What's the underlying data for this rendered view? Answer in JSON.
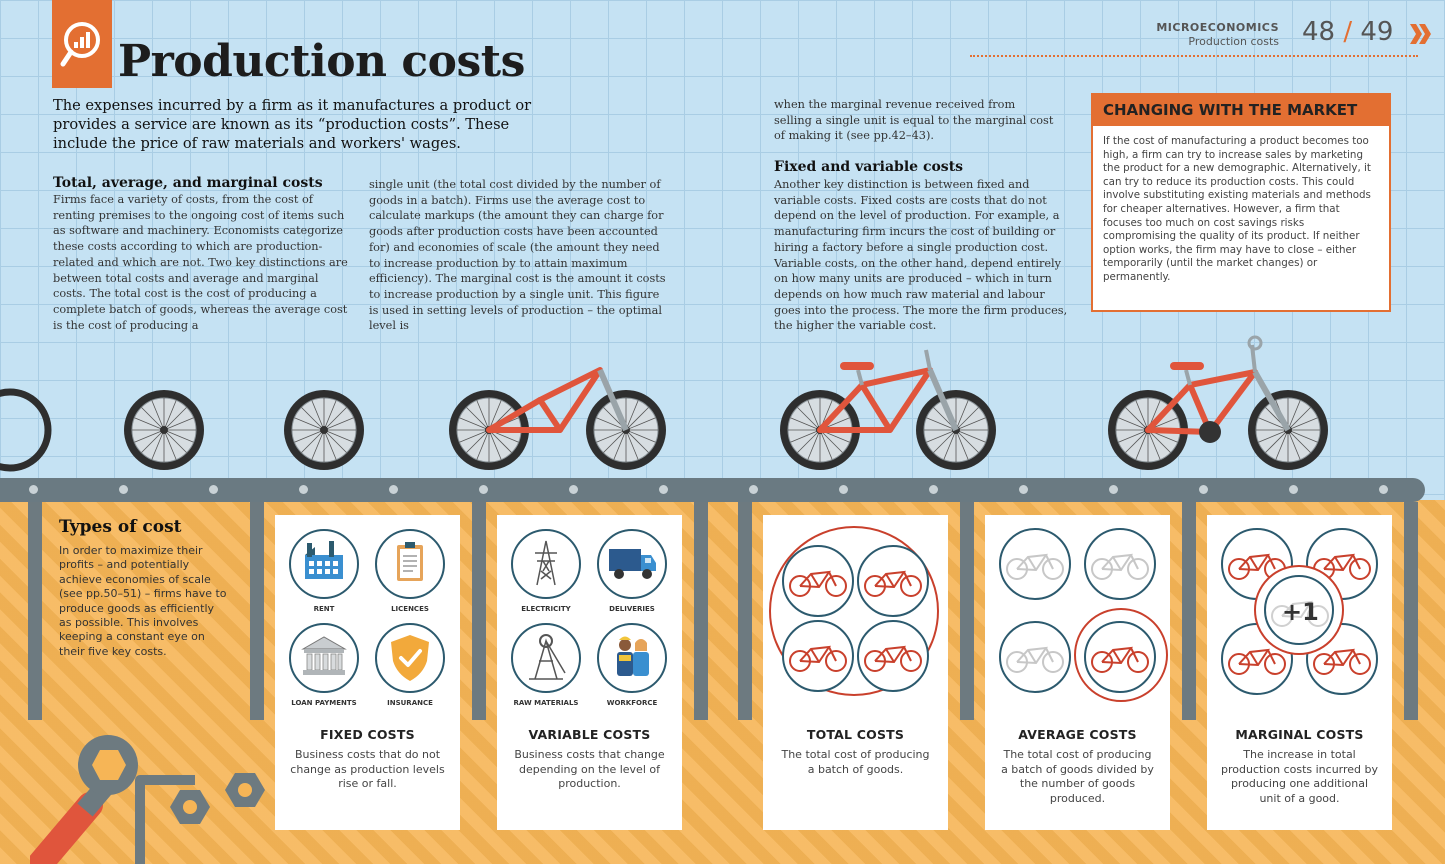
{
  "header": {
    "section": "MICROECONOMICS",
    "subsection": "Production costs",
    "page_left": "48",
    "page_sep": "/",
    "page_right": "49"
  },
  "title": "Production costs",
  "intro": "The expenses incurred by a firm as it manufactures a product or provides a service are known as its “production costs”. These include the price of raw materials and workers' wages.",
  "total_section": {
    "heading": "Total, average, and marginal costs",
    "col1": "Firms face a variety of costs, from the cost of renting premises to the ongoing cost of items such as software and machinery. Economists categorize these costs according to which are production-related and which are not. Two key distinctions are between total costs and average and marginal costs. The total cost is the cost of producing a complete batch of goods, whereas the average cost is the cost of producing a",
    "col2": "single unit (the total cost divided by the number of goods in a batch). Firms use the average cost to calculate markups (the amount they can charge for goods after production costs have been accounted for) and economies of scale (the amount they need to increase production by to attain maximum efficiency). The marginal cost is the amount it costs to increase production by a single unit. This figure is used in setting levels of production – the optimal level is"
  },
  "col3_top": "when the marginal revenue received from selling a single unit is equal to the marginal cost of making it (see pp.42–43).",
  "fixed_variable": {
    "heading": "Fixed and variable costs",
    "body": "Another key distinction is between fixed and variable costs. Fixed costs are costs that do not depend on the level of production. For example, a manufacturing firm incurs the cost of building or hiring a factory before a single production cost. Variable costs, on the other hand, depend entirely on how many units are produced – which in turn depends on how much raw material and labour goes into the process. The more the firm produces, the higher the variable cost."
  },
  "market_box": {
    "heading": "CHANGING WITH THE MARKET",
    "body": "If the cost of manufacturing a product becomes too high, a firm can try to increase sales by marketing the product for a new demographic. Alternatively, it can try to reduce its production costs. This could involve substituting existing materials and methods for cheaper alternatives. However, a firm that focuses too much on cost savings risks compromising the quality of its product. If neither option works, the firm may have to close – either temporarily (until the market changes) or permanently."
  },
  "types": {
    "heading": "Types of cost",
    "body": "In order to maximize their profits – and potentially achieve economies of scale (see pp.50–51) – firms have to produce goods as efficiently as possible. This involves keeping a constant eye on their five key costs."
  },
  "cards": {
    "fixed": {
      "title": "FIXED COSTS",
      "desc": "Business costs that do not change as production levels rise or fall.",
      "icons": [
        "RENT",
        "LICENCES",
        "LOAN PAYMENTS",
        "INSURANCE"
      ]
    },
    "variable": {
      "title": "VARIABLE COSTS",
      "desc": "Business costs that change depending on the level of production.",
      "icons": [
        "ELECTRICITY",
        "DELIVERIES",
        "RAW MATERIALS",
        "WORKFORCE"
      ]
    },
    "total": {
      "title": "TOTAL COSTS",
      "desc": "The total cost of producing a batch of goods."
    },
    "average": {
      "title": "AVERAGE COSTS",
      "desc": "The total cost of producing a batch of goods divided by the number of goods produced."
    },
    "marginal": {
      "title": "MARGINAL COSTS",
      "desc": "The increase in total production costs incurred by producing one additional unit of a good.",
      "badge": "+1"
    }
  },
  "colors": {
    "accent": "#e36f32",
    "sky": "#c5e2f3",
    "floor": "#f6b556",
    "frame": "#e0553c",
    "icon_ring": "#2c5a6e"
  }
}
